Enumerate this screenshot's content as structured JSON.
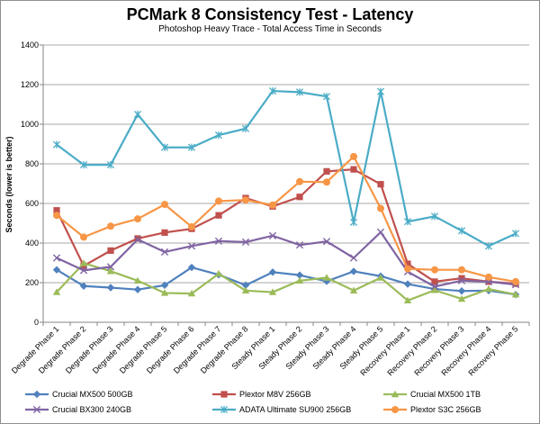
{
  "chart_data": {
    "type": "line",
    "title": "PCMark 8 Consistency Test - Latency",
    "subtitle": "Photoshop Heavy Trace - Total Access Time in Seconds",
    "ylabel": "Seconds (lower is better)",
    "xlabel": "",
    "ylim": [
      0,
      1400
    ],
    "yticks": [
      0,
      200,
      400,
      600,
      800,
      1000,
      1200,
      1400
    ],
    "grid": true,
    "legend_position": "bottom",
    "categories": [
      "Degrade Phase 1",
      "Degrade Phase 2",
      "Degrade Phase 3",
      "Degrade Phase 4",
      "Degrade Phase 5",
      "Degrade Phase 6",
      "Degrade Phase 7",
      "Degrade Phase 8",
      "Steady Phase 1",
      "Steady Phase 2",
      "Steady Phase 3",
      "Steady Phase 4",
      "Steady Phase 5",
      "Recovery Phase 1",
      "Recovery Phase 2",
      "Recovery Phase 3",
      "Recovery Phase 4",
      "Recovery Phase 5"
    ],
    "series": [
      {
        "name": "Crucial MX500 500GB",
        "color": "#4f81bd",
        "marker": "diamond",
        "values": [
          265,
          183,
          175,
          165,
          187,
          277,
          240,
          187,
          253,
          238,
          207,
          257,
          233,
          193,
          168,
          158,
          160,
          140
        ]
      },
      {
        "name": "Plextor M8V 256GB",
        "color": "#c0504d",
        "marker": "square",
        "values": [
          565,
          285,
          362,
          423,
          453,
          472,
          540,
          627,
          585,
          633,
          762,
          772,
          697,
          295,
          205,
          222,
          205,
          195
        ]
      },
      {
        "name": "Crucial MX500 1TB",
        "color": "#9bbb59",
        "marker": "triangle",
        "values": [
          152,
          298,
          258,
          210,
          148,
          145,
          245,
          160,
          152,
          210,
          225,
          160,
          225,
          110,
          162,
          118,
          168,
          140
        ]
      },
      {
        "name": "Crucial BX300 240GB",
        "color": "#8064a2",
        "marker": "x",
        "values": [
          325,
          262,
          280,
          418,
          355,
          385,
          410,
          405,
          437,
          390,
          408,
          325,
          455,
          255,
          180,
          210,
          205,
          190
        ]
      },
      {
        "name": "ADATA Ultimate SU900 256GB",
        "color": "#4bacc6",
        "marker": "star",
        "values": [
          897,
          795,
          795,
          1050,
          883,
          883,
          945,
          978,
          1168,
          1162,
          1140,
          505,
          1165,
          508,
          535,
          462,
          385,
          448
        ]
      },
      {
        "name": "Plextor S3C 256GB",
        "color": "#f79646",
        "marker": "circle",
        "values": [
          540,
          430,
          485,
          522,
          595,
          482,
          612,
          617,
          592,
          710,
          708,
          837,
          575,
          270,
          265,
          265,
          228,
          205
        ]
      }
    ]
  }
}
